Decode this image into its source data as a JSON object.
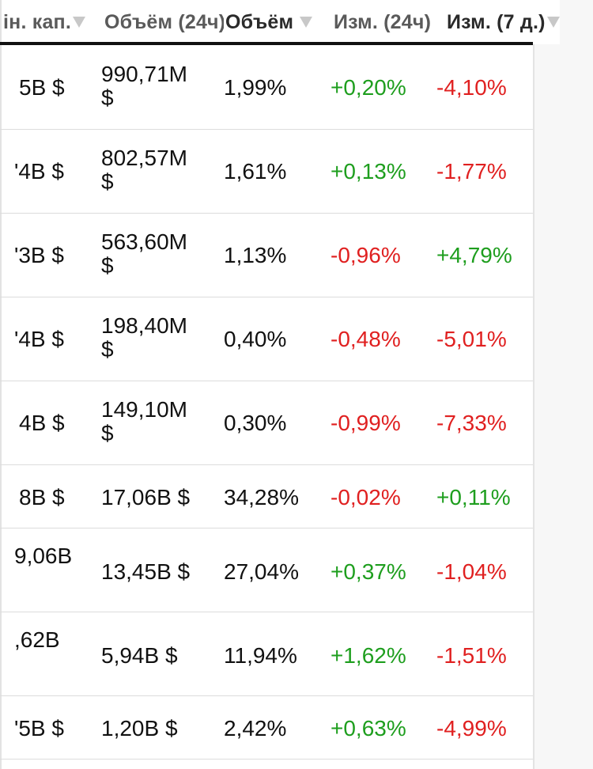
{
  "header": {
    "cols": [
      {
        "label": "ін. кап."
      },
      {
        "label": "Объём (24ч)"
      },
      {
        "label": "Объём"
      },
      {
        "label": "Изм. (24ч)"
      },
      {
        "label": "Изм. (7 д.)"
      }
    ]
  },
  "rows": [
    {
      "cap": "5B $",
      "vol24_line1": "990,71M",
      "vol24_line2": "$",
      "share": "1,99%",
      "ch24": "+0,20%",
      "ch7": "-4,10%"
    },
    {
      "cap": "'4B $",
      "vol24_line1": "802,57M",
      "vol24_line2": "$",
      "share": "1,61%",
      "ch24": "+0,13%",
      "ch7": "-1,77%"
    },
    {
      "cap": "'3B $",
      "vol24_line1": "563,60M",
      "vol24_line2": "$",
      "share": "1,13%",
      "ch24": "-0,96%",
      "ch7": "+4,79%"
    },
    {
      "cap": "'4B $",
      "vol24_line1": "198,40M",
      "vol24_line2": "$",
      "share": "0,40%",
      "ch24": "-0,48%",
      "ch7": "-5,01%"
    },
    {
      "cap": "4B $",
      "vol24_line1": "149,10M",
      "vol24_line2": "$",
      "share": "0,30%",
      "ch24": "-0,99%",
      "ch7": "-7,33%"
    },
    {
      "cap": "8B $",
      "vol24_line1": "17,06B $",
      "vol24_line2": "",
      "share": "34,28%",
      "ch24": "-0,02%",
      "ch7": "+0,11%"
    },
    {
      "cap": "9,06B",
      "vol24_line1": "13,45B $",
      "vol24_line2": "",
      "share": "27,04%",
      "ch24": "+0,37%",
      "ch7": "-1,04%"
    },
    {
      "cap": ",62B",
      "vol24_line1": "5,94B $",
      "vol24_line2": "",
      "share": "11,94%",
      "ch24": "+1,62%",
      "ch7": "-1,51%"
    },
    {
      "cap": "'5B $",
      "vol24_line1": "1,20B $",
      "vol24_line2": "",
      "share": "2,42%",
      "ch24": "+0,63%",
      "ch7": "-4,99%"
    }
  ],
  "colors": {
    "positive": "#1e9e1e",
    "negative": "#e02020"
  }
}
